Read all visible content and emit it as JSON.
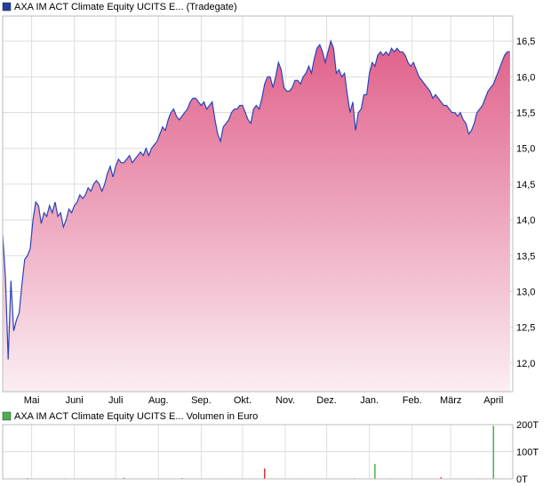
{
  "chart_data": [
    {
      "type": "area",
      "legend": "AXA IM ACT Climate Equity UCITS E... (Tradegate)",
      "legend_color": "#1f3f9f",
      "line_color": "#2a44b8",
      "fill_top_color": "#e0608a",
      "fill_bottom_color": "#fbeef3",
      "y_ticks": [
        "12,0",
        "12,5",
        "13,0",
        "13,5",
        "14,0",
        "14,5",
        "15,0",
        "15,5",
        "16,0",
        "16,5"
      ],
      "ylim": [
        11.6,
        16.85
      ],
      "x_ticks": [
        "Mai",
        "Juni",
        "Juli",
        "Aug.",
        "Sep.",
        "Okt.",
        "Nov.",
        "Dez.",
        "Jan.",
        "Feb.",
        "März",
        "April"
      ],
      "x_tick_days": [
        21,
        52,
        82,
        113,
        144,
        174,
        205,
        235,
        266,
        297,
        325,
        356
      ],
      "xlim": [
        0,
        370
      ],
      "grid": "on",
      "series": [
        {
          "x": [
            0,
            2,
            4,
            6,
            8,
            10,
            12,
            14,
            16,
            18,
            20,
            22,
            24,
            26,
            28,
            30,
            32,
            34,
            36,
            38,
            40,
            42,
            44,
            46,
            48,
            50,
            52,
            54,
            56,
            58,
            60,
            62,
            64,
            66,
            68,
            70,
            72,
            74,
            76,
            78,
            80,
            82,
            84,
            86,
            88,
            90,
            92,
            94,
            96,
            98,
            100,
            102,
            104,
            106,
            108,
            110,
            112,
            114,
            116,
            118,
            120,
            122,
            124,
            126,
            128,
            130,
            132,
            134,
            136,
            138,
            140,
            142,
            144,
            146,
            148,
            150,
            152,
            154,
            156,
            158,
            160,
            162,
            164,
            166,
            168,
            170,
            172,
            174,
            176,
            178,
            180,
            182,
            184,
            186,
            188,
            190,
            192,
            194,
            196,
            198,
            200,
            202,
            204,
            206,
            208,
            210,
            212,
            214,
            216,
            218,
            220,
            222,
            224,
            226,
            228,
            230,
            232,
            234,
            236,
            238,
            240,
            242,
            244,
            246,
            248,
            250,
            252,
            254,
            256,
            258,
            260,
            262,
            264,
            266,
            268,
            270,
            272,
            274,
            276,
            278,
            280,
            282,
            284,
            286,
            288,
            290,
            292,
            294,
            296,
            298,
            300,
            302,
            304,
            306,
            308,
            310,
            312,
            314,
            316,
            318,
            320,
            322,
            324,
            326,
            328,
            330,
            332,
            334,
            336,
            338,
            340,
            342,
            344,
            346,
            348,
            350,
            352,
            354,
            356,
            358,
            360,
            362,
            364,
            366,
            368
          ],
          "values": [
            13.8,
            13.2,
            12.05,
            13.15,
            12.45,
            12.6,
            12.7,
            13.1,
            13.45,
            13.5,
            13.6,
            14.0,
            14.25,
            14.2,
            13.95,
            14.1,
            14.05,
            14.2,
            14.1,
            14.25,
            14.05,
            14.1,
            13.9,
            14.0,
            14.15,
            14.1,
            14.2,
            14.25,
            14.35,
            14.3,
            14.35,
            14.45,
            14.4,
            14.5,
            14.55,
            14.5,
            14.4,
            14.5,
            14.65,
            14.75,
            14.6,
            14.75,
            14.85,
            14.8,
            14.8,
            14.85,
            14.9,
            14.8,
            14.85,
            14.9,
            14.95,
            14.9,
            15.0,
            14.9,
            15.0,
            15.05,
            15.1,
            15.2,
            15.3,
            15.25,
            15.4,
            15.5,
            15.55,
            15.45,
            15.4,
            15.45,
            15.5,
            15.55,
            15.65,
            15.7,
            15.7,
            15.65,
            15.6,
            15.65,
            15.55,
            15.6,
            15.65,
            15.4,
            15.2,
            15.1,
            15.3,
            15.35,
            15.4,
            15.5,
            15.55,
            15.55,
            15.6,
            15.6,
            15.5,
            15.4,
            15.35,
            15.55,
            15.6,
            15.55,
            15.7,
            15.9,
            16.0,
            16.0,
            15.85,
            16.0,
            16.2,
            16.1,
            15.85,
            15.8,
            15.8,
            15.85,
            15.95,
            15.95,
            15.9,
            16.0,
            16.05,
            16.15,
            16.05,
            16.25,
            16.4,
            16.45,
            16.35,
            16.2,
            16.35,
            16.5,
            16.4,
            16.05,
            16.1,
            16.0,
            16.05,
            15.75,
            15.5,
            15.65,
            15.25,
            15.5,
            15.55,
            15.75,
            15.75,
            16.05,
            16.2,
            16.15,
            16.3,
            16.35,
            16.3,
            16.35,
            16.3,
            16.4,
            16.35,
            16.4,
            16.35,
            16.35,
            16.3,
            16.2,
            16.15,
            16.2,
            16.1,
            16.0,
            15.95,
            15.9,
            15.85,
            15.8,
            15.7,
            15.75,
            15.7,
            15.65,
            15.6,
            15.6,
            15.55,
            15.5,
            15.5,
            15.45,
            15.5,
            15.4,
            15.35,
            15.2,
            15.25,
            15.35,
            15.5,
            15.55,
            15.6,
            15.7,
            15.8,
            15.85,
            15.9,
            16.0,
            16.1,
            16.2,
            16.3,
            16.35,
            16.35
          ]
        }
      ]
    },
    {
      "type": "bar",
      "legend": "AXA IM ACT Climate Equity UCITS E... Volumen in Euro",
      "legend_color": "#4caf50",
      "y_ticks": [
        "0T",
        "100T",
        "200T"
      ],
      "ylim": [
        0,
        200
      ],
      "xlim": [
        0,
        370
      ],
      "bar_color": "#e03030",
      "series": [
        {
          "name": "Volumen",
          "x": [
            10,
            18,
            28,
            45,
            60,
            88,
            105,
            130,
            165,
            190,
            215,
            235,
            255,
            270,
            282,
            300,
            318,
            330,
            345,
            356,
            362
          ],
          "values": [
            2,
            3,
            1,
            2,
            2,
            4,
            1,
            3,
            2,
            38,
            2,
            1,
            3,
            55,
            2,
            1,
            6,
            1,
            2,
            195,
            2
          ],
          "colors": [
            "#4caf50",
            "#e03030",
            "#4caf50",
            "#e03030",
            "#4caf50",
            "#e03030",
            "#4caf50",
            "#e03030",
            "#4caf50",
            "#e03030",
            "#4caf50",
            "#e03030",
            "#4caf50",
            "#4caf50",
            "#e03030",
            "#4caf50",
            "#e03030",
            "#4caf50",
            "#e03030",
            "#4caf50",
            "#e03030"
          ]
        }
      ]
    }
  ]
}
